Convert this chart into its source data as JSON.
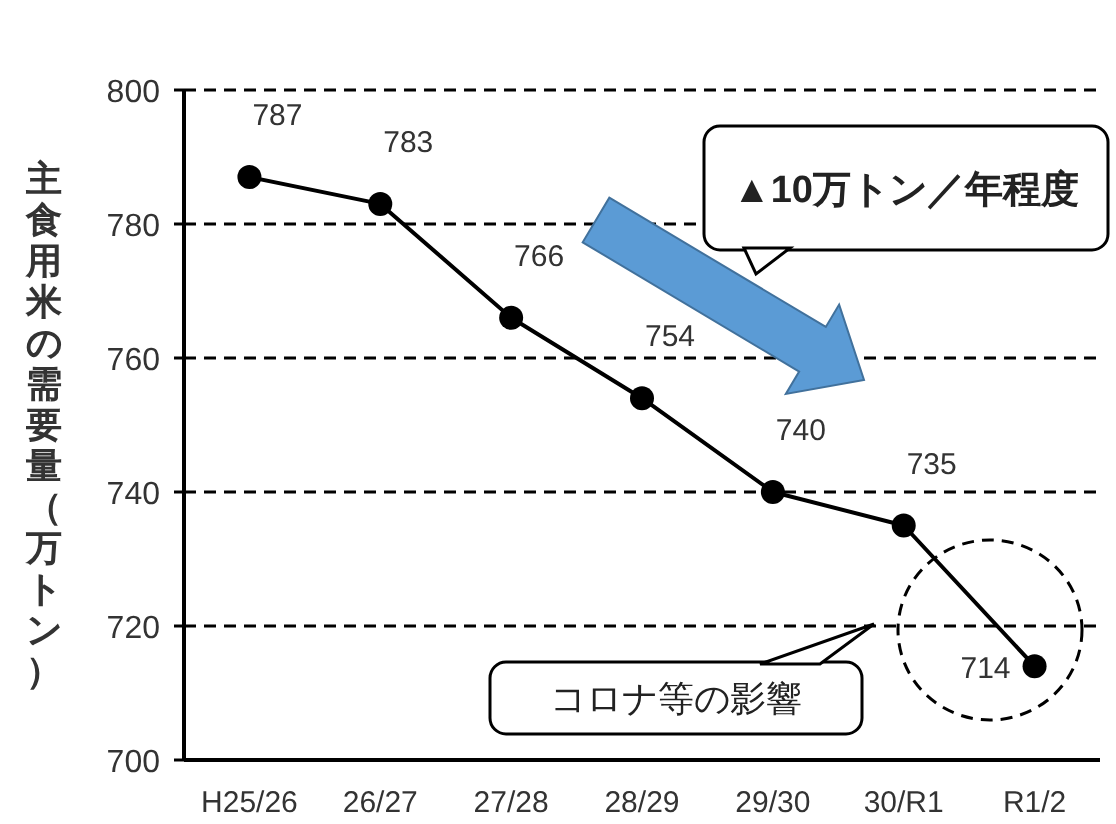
{
  "chart_data": {
    "type": "line",
    "ylabel": "主食用米の需要量（万トン）",
    "categories": [
      "H25/26",
      "26/27",
      "27/28",
      "28/29",
      "29/30",
      "30/R1",
      "R1/2"
    ],
    "series": [
      {
        "color": "#000000",
        "values": [
          787,
          783,
          766,
          754,
          740,
          735,
          714
        ]
      }
    ],
    "ylim": [
      700,
      800
    ],
    "yticks": [
      700,
      720,
      740,
      760,
      780,
      800
    ],
    "grid": "y",
    "marker": "circle",
    "line_style": "solid",
    "data_labels": true,
    "annotations": [
      "▲10万トン／年程度",
      "コロナ等の影響"
    ]
  }
}
